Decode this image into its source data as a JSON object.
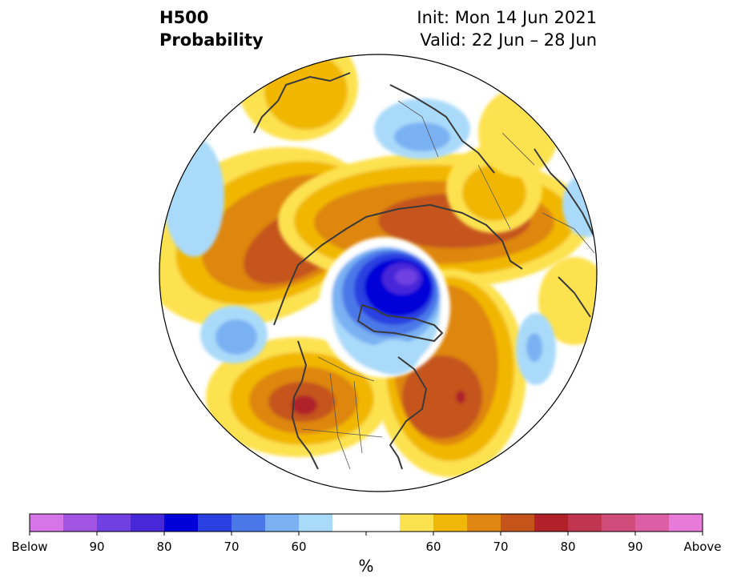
{
  "title": {
    "left_line1": "H500",
    "left_line2": "Probability",
    "right_line1": "Init: Mon 14 Jun 2021",
    "right_line2": "Valid: 22 Jun – 28 Jun"
  },
  "colorbar": {
    "unit": "%",
    "labels": [
      "Below",
      "90",
      "80",
      "70",
      "60",
      "60",
      "70",
      "80",
      "90",
      "Above"
    ],
    "colors": [
      "#d675e8",
      "#a153e2",
      "#7040e2",
      "#4628d8",
      "#0000d8",
      "#2a3fe0",
      "#4b78e8",
      "#79b1f3",
      "#aadaf9",
      "#ffffff",
      "#ffffff",
      "#fde24f",
      "#f1b706",
      "#de8611",
      "#c5541a",
      "#b0212a",
      "#c13550",
      "#cf4b7a",
      "#dc5fa6",
      "#e87ad9"
    ]
  },
  "map": {
    "projection": "north-polar-stereographic",
    "anomalies": [
      {
        "region": "Central Arctic / Kara Sea",
        "sign": "below",
        "max_percent": 90
      },
      {
        "region": "Western Europe / North Sea",
        "sign": "below",
        "max_percent": 70
      },
      {
        "region": "Hudson Bay",
        "sign": "below",
        "max_percent": 60
      },
      {
        "region": "Central North Pacific",
        "sign": "below",
        "max_percent": 70
      },
      {
        "region": "Western Siberia",
        "sign": "above",
        "max_percent": 75
      },
      {
        "region": "Eastern Siberia",
        "sign": "above",
        "max_percent": 80
      },
      {
        "region": "Western North America",
        "sign": "above",
        "max_percent": 80
      },
      {
        "region": "Greenland / North Atlantic",
        "sign": "above",
        "max_percent": 80
      },
      {
        "region": "Alaska",
        "sign": "above",
        "max_percent": 70
      }
    ]
  }
}
